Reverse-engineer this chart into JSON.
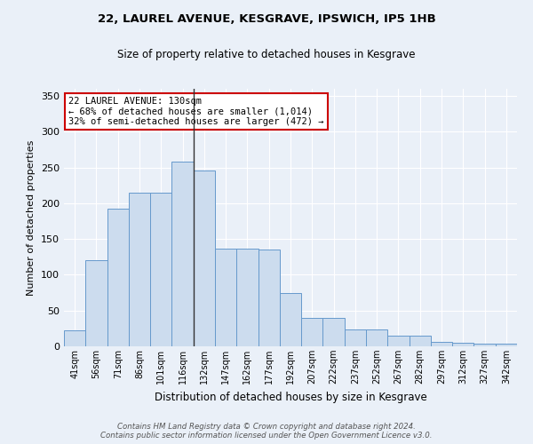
{
  "title1": "22, LAUREL AVENUE, KESGRAVE, IPSWICH, IP5 1HB",
  "title2": "Size of property relative to detached houses in Kesgrave",
  "xlabel": "Distribution of detached houses by size in Kesgrave",
  "ylabel": "Number of detached properties",
  "categories": [
    "41sqm",
    "56sqm",
    "71sqm",
    "86sqm",
    "101sqm",
    "116sqm",
    "132sqm",
    "147sqm",
    "162sqm",
    "177sqm",
    "192sqm",
    "207sqm",
    "222sqm",
    "237sqm",
    "252sqm",
    "267sqm",
    "282sqm",
    "297sqm",
    "312sqm",
    "327sqm",
    "342sqm"
  ],
  "values": [
    22,
    120,
    193,
    215,
    215,
    258,
    246,
    136,
    136,
    135,
    75,
    40,
    40,
    23,
    23,
    15,
    15,
    6,
    5,
    4,
    4
  ],
  "bar_color": "#ccdcee",
  "bar_edge_color": "#6699cc",
  "marker_line_color": "#333333",
  "annotation_text": "22 LAUREL AVENUE: 130sqm\n← 68% of detached houses are smaller (1,014)\n32% of semi-detached houses are larger (472) →",
  "annotation_box_color": "#ffffff",
  "annotation_box_edge": "#cc0000",
  "footer_text": "Contains HM Land Registry data © Crown copyright and database right 2024.\nContains public sector information licensed under the Open Government Licence v3.0.",
  "ylim": [
    0,
    360
  ],
  "background_color": "#eaf0f8",
  "grid_color": "#ffffff",
  "yticks": [
    0,
    50,
    100,
    150,
    200,
    250,
    300,
    350
  ]
}
